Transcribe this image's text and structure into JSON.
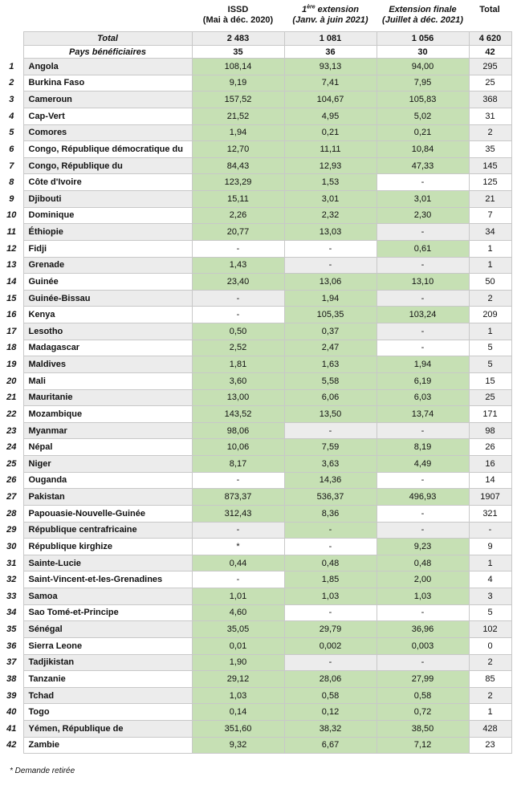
{
  "headers": {
    "issd": {
      "line1": "ISSD",
      "line2": "(Mai à déc. 2020)"
    },
    "ext1": {
      "line1_sup": "ère",
      "line1_num": "1",
      "line1_rest": " extension",
      "line2": "(Janv. à juin 2021)"
    },
    "ext_final": {
      "line1": "Extension finale",
      "line2": "(Juillet à déc. 2021)"
    },
    "total": "Total"
  },
  "summary": {
    "total": {
      "label": "Total",
      "issd": "2 483",
      "ext1": "1 081",
      "ext_final": "1 056",
      "total": "4 620"
    },
    "beneficiaries": {
      "label": "Pays bénéficiaires",
      "issd": "35",
      "ext1": "36",
      "ext_final": "30",
      "total": "42"
    }
  },
  "highlight_color": "#c6e0b4",
  "rows": [
    {
      "n": "1",
      "country": "Angola",
      "issd": "108,14",
      "ext1": "93,13",
      "ext_final": "94,00",
      "total": "295",
      "green": [
        true,
        true,
        true
      ]
    },
    {
      "n": "2",
      "country": "Burkina Faso",
      "issd": "9,19",
      "ext1": "7,41",
      "ext_final": "7,95",
      "total": "25",
      "green": [
        true,
        true,
        true
      ]
    },
    {
      "n": "3",
      "country": "Cameroun",
      "issd": "157,52",
      "ext1": "104,67",
      "ext_final": "105,83",
      "total": "368",
      "green": [
        true,
        true,
        true
      ]
    },
    {
      "n": "4",
      "country": "Cap-Vert",
      "issd": "21,52",
      "ext1": "4,95",
      "ext_final": "5,02",
      "total": "31",
      "green": [
        true,
        true,
        true
      ]
    },
    {
      "n": "5",
      "country": "Comores",
      "issd": "1,94",
      "ext1": "0,21",
      "ext_final": "0,21",
      "total": "2",
      "green": [
        true,
        true,
        true
      ]
    },
    {
      "n": "6",
      "country": "Congo, République démocratique du",
      "issd": "12,70",
      "ext1": "11,11",
      "ext_final": "10,84",
      "total": "35",
      "green": [
        true,
        true,
        true
      ]
    },
    {
      "n": "7",
      "country": "Congo, République du",
      "issd": "84,43",
      "ext1": "12,93",
      "ext_final": "47,33",
      "total": "145",
      "green": [
        true,
        true,
        true
      ]
    },
    {
      "n": "8",
      "country": "Côte d'Ivoire",
      "issd": "123,29",
      "ext1": "1,53",
      "ext_final": "-",
      "total": "125",
      "green": [
        true,
        true,
        false
      ]
    },
    {
      "n": "9",
      "country": "Djibouti",
      "issd": "15,11",
      "ext1": "3,01",
      "ext_final": "3,01",
      "total": "21",
      "green": [
        true,
        true,
        true
      ]
    },
    {
      "n": "10",
      "country": "Dominique",
      "issd": "2,26",
      "ext1": "2,32",
      "ext_final": "2,30",
      "total": "7",
      "green": [
        true,
        true,
        true
      ]
    },
    {
      "n": "11",
      "country": "Éthiopie",
      "issd": "20,77",
      "ext1": "13,03",
      "ext_final": "-",
      "total": "34",
      "green": [
        true,
        true,
        false
      ]
    },
    {
      "n": "12",
      "country": "Fidji",
      "issd": "-",
      "ext1": "-",
      "ext_final": "0,61",
      "total": "1",
      "green": [
        false,
        false,
        true
      ]
    },
    {
      "n": "13",
      "country": "Grenade",
      "issd": "1,43",
      "ext1": "-",
      "ext_final": "-",
      "total": "1",
      "green": [
        true,
        false,
        false
      ]
    },
    {
      "n": "14",
      "country": "Guinée",
      "issd": "23,40",
      "ext1": "13,06",
      "ext_final": "13,10",
      "total": "50",
      "green": [
        true,
        true,
        true
      ]
    },
    {
      "n": "15",
      "country": "Guinée-Bissau",
      "issd": "-",
      "ext1": "1,94",
      "ext_final": "-",
      "total": "2",
      "green": [
        false,
        true,
        false
      ]
    },
    {
      "n": "16",
      "country": "Kenya",
      "issd": "-",
      "ext1": "105,35",
      "ext_final": "103,24",
      "total": "209",
      "green": [
        false,
        true,
        true
      ]
    },
    {
      "n": "17",
      "country": "Lesotho",
      "issd": "0,50",
      "ext1": "0,37",
      "ext_final": "-",
      "total": "1",
      "green": [
        true,
        true,
        false
      ]
    },
    {
      "n": "18",
      "country": "Madagascar",
      "issd": "2,52",
      "ext1": "2,47",
      "ext_final": "-",
      "total": "5",
      "green": [
        true,
        true,
        false
      ]
    },
    {
      "n": "19",
      "country": "Maldives",
      "issd": "1,81",
      "ext1": "1,63",
      "ext_final": "1,94",
      "total": "5",
      "green": [
        true,
        true,
        true
      ]
    },
    {
      "n": "20",
      "country": "Mali",
      "issd": "3,60",
      "ext1": "5,58",
      "ext_final": "6,19",
      "total": "15",
      "green": [
        true,
        true,
        true
      ]
    },
    {
      "n": "21",
      "country": "Mauritanie",
      "issd": "13,00",
      "ext1": "6,06",
      "ext_final": "6,03",
      "total": "25",
      "green": [
        true,
        true,
        true
      ]
    },
    {
      "n": "22",
      "country": "Mozambique",
      "issd": "143,52",
      "ext1": "13,50",
      "ext_final": "13,74",
      "total": "171",
      "green": [
        true,
        true,
        true
      ]
    },
    {
      "n": "23",
      "country": "Myanmar",
      "issd": "98,06",
      "ext1": "-",
      "ext_final": "-",
      "total": "98",
      "green": [
        true,
        false,
        false
      ]
    },
    {
      "n": "24",
      "country": "Népal",
      "issd": "10,06",
      "ext1": "7,59",
      "ext_final": "8,19",
      "total": "26",
      "green": [
        true,
        true,
        true
      ]
    },
    {
      "n": "25",
      "country": "Niger",
      "issd": "8,17",
      "ext1": "3,63",
      "ext_final": "4,49",
      "total": "16",
      "green": [
        true,
        true,
        true
      ]
    },
    {
      "n": "26",
      "country": "Ouganda",
      "issd": "-",
      "ext1": "14,36",
      "ext_final": "-",
      "total": "14",
      "green": [
        false,
        true,
        false
      ]
    },
    {
      "n": "27",
      "country": "Pakistan",
      "issd": "873,37",
      "ext1": "536,37",
      "ext_final": "496,93",
      "total": "1907",
      "green": [
        true,
        true,
        true
      ]
    },
    {
      "n": "28",
      "country": "Papouasie-Nouvelle-Guinée",
      "issd": "312,43",
      "ext1": "8,36",
      "ext_final": "-",
      "total": "321",
      "green": [
        true,
        true,
        false
      ]
    },
    {
      "n": "29",
      "country": "République centrafricaine",
      "issd": "-",
      "ext1": "-",
      "ext_final": "-",
      "total": "-",
      "green": [
        false,
        true,
        false
      ]
    },
    {
      "n": "30",
      "country": "République kirghize",
      "issd": "*",
      "ext1": "-",
      "ext_final": "9,23",
      "total": "9",
      "green": [
        false,
        false,
        true
      ]
    },
    {
      "n": "31",
      "country": "Sainte-Lucie",
      "issd": "0,44",
      "ext1": "0,48",
      "ext_final": "0,48",
      "total": "1",
      "green": [
        true,
        true,
        true
      ]
    },
    {
      "n": "32",
      "country": "Saint-Vincent-et-les-Grenadines",
      "issd": "-",
      "ext1": "1,85",
      "ext_final": "2,00",
      "total": "4",
      "green": [
        false,
        true,
        true
      ]
    },
    {
      "n": "33",
      "country": "Samoa",
      "issd": "1,01",
      "ext1": "1,03",
      "ext_final": "1,03",
      "total": "3",
      "green": [
        true,
        true,
        true
      ]
    },
    {
      "n": "34",
      "country": "Sao Tomé-et-Principe",
      "issd": "4,60",
      "ext1": "-",
      "ext_final": "-",
      "total": "5",
      "green": [
        true,
        false,
        false
      ]
    },
    {
      "n": "35",
      "country": "Sénégal",
      "issd": "35,05",
      "ext1": "29,79",
      "ext_final": "36,96",
      "total": "102",
      "green": [
        true,
        true,
        true
      ]
    },
    {
      "n": "36",
      "country": "Sierra Leone",
      "issd": "0,01",
      "ext1": "0,002",
      "ext_final": "0,003",
      "total": "0",
      "green": [
        true,
        true,
        true
      ]
    },
    {
      "n": "37",
      "country": "Tadjikistan",
      "issd": "1,90",
      "ext1": "-",
      "ext_final": "-",
      "total": "2",
      "green": [
        true,
        false,
        false
      ]
    },
    {
      "n": "38",
      "country": "Tanzanie",
      "issd": "29,12",
      "ext1": "28,06",
      "ext_final": "27,99",
      "total": "85",
      "green": [
        true,
        true,
        true
      ]
    },
    {
      "n": "39",
      "country": "Tchad",
      "issd": "1,03",
      "ext1": "0,58",
      "ext_final": "0,58",
      "total": "2",
      "green": [
        true,
        true,
        true
      ]
    },
    {
      "n": "40",
      "country": "Togo",
      "issd": "0,14",
      "ext1": "0,12",
      "ext_final": "0,72",
      "total": "1",
      "green": [
        true,
        true,
        true
      ]
    },
    {
      "n": "41",
      "country": "Yémen, République de",
      "issd": "351,60",
      "ext1": "38,32",
      "ext_final": "38,50",
      "total": "428",
      "green": [
        true,
        true,
        true
      ]
    },
    {
      "n": "42",
      "country": "Zambie",
      "issd": "9,32",
      "ext1": "6,67",
      "ext_final": "7,12",
      "total": "23",
      "green": [
        true,
        true,
        true
      ]
    }
  ],
  "footnote": "* Demande retirée"
}
